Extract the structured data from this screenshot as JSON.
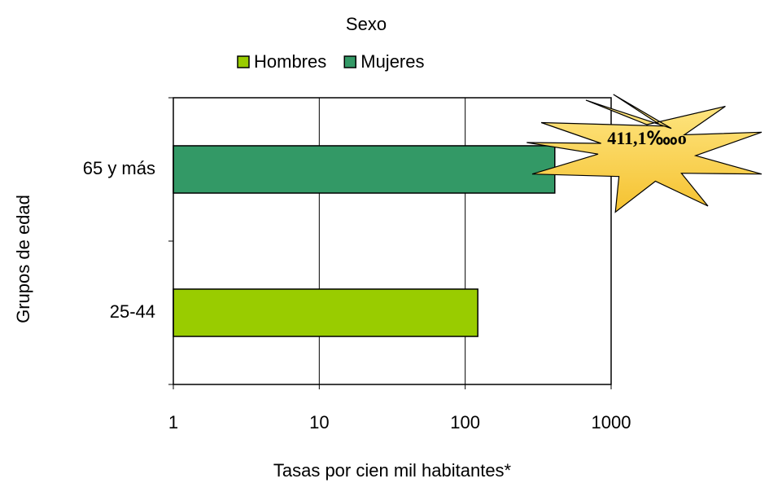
{
  "chart_data": {
    "type": "bar",
    "orientation": "horizontal",
    "legend_title": "Sexo",
    "categories": [
      "25-44",
      "65 y más"
    ],
    "series": [
      {
        "name": "Hombres",
        "color": "#99cc00",
        "values": [
          122,
          null
        ]
      },
      {
        "name": "Mujeres",
        "color": "#339966",
        "values": [
          null,
          411.1
        ]
      }
    ],
    "xlim": [
      1,
      1000
    ],
    "xticks": [
      1,
      10,
      100,
      1000
    ],
    "x_scale": "log",
    "grid": true,
    "xlabel": "Tasas por cien mil habitantes*",
    "ylabel": "Grupos de edad",
    "legend_position": "top",
    "annotation": "411,1‱o"
  }
}
